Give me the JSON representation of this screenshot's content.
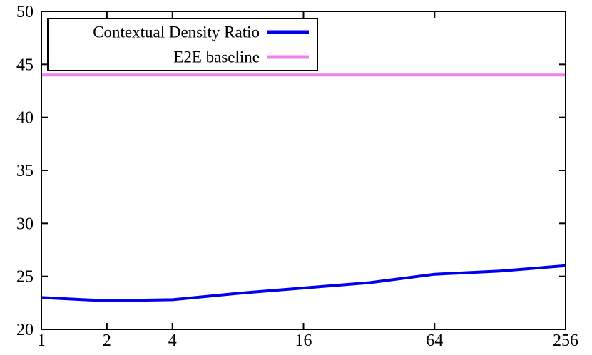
{
  "figure": {
    "background": "#ffffff",
    "frame_color": "#000000",
    "tick_label_color": "#000000"
  },
  "legend": {
    "position": "top-left",
    "border_color": "#000000",
    "fill": "#ffffff",
    "entries": [
      {
        "label": "Contextual Density Ratio",
        "color": "#0000ee"
      },
      {
        "label": "E2E baseline",
        "color": "#ee82ee"
      }
    ]
  },
  "chart_data": {
    "type": "line",
    "title": "",
    "xlabel": "",
    "ylabel": "",
    "x_scale": "log2",
    "xlim": [
      1,
      256
    ],
    "ylim": [
      20,
      50
    ],
    "x_ticks": [
      1,
      2,
      4,
      16,
      64,
      256
    ],
    "y_ticks": [
      20,
      25,
      30,
      35,
      40,
      45,
      50
    ],
    "grid": false,
    "legend_position": "top-left",
    "series": [
      {
        "name": "Contextual Density Ratio",
        "color": "#0000ee",
        "x": [
          1,
          2,
          4,
          8,
          16,
          32,
          64,
          128,
          256
        ],
        "y": [
          23.0,
          22.7,
          22.8,
          23.4,
          23.9,
          24.4,
          25.2,
          25.5,
          26.0
        ]
      },
      {
        "name": "E2E baseline",
        "color": "#ee82ee",
        "x": [
          1,
          256
        ],
        "y": [
          44.0,
          44.0
        ]
      }
    ]
  }
}
